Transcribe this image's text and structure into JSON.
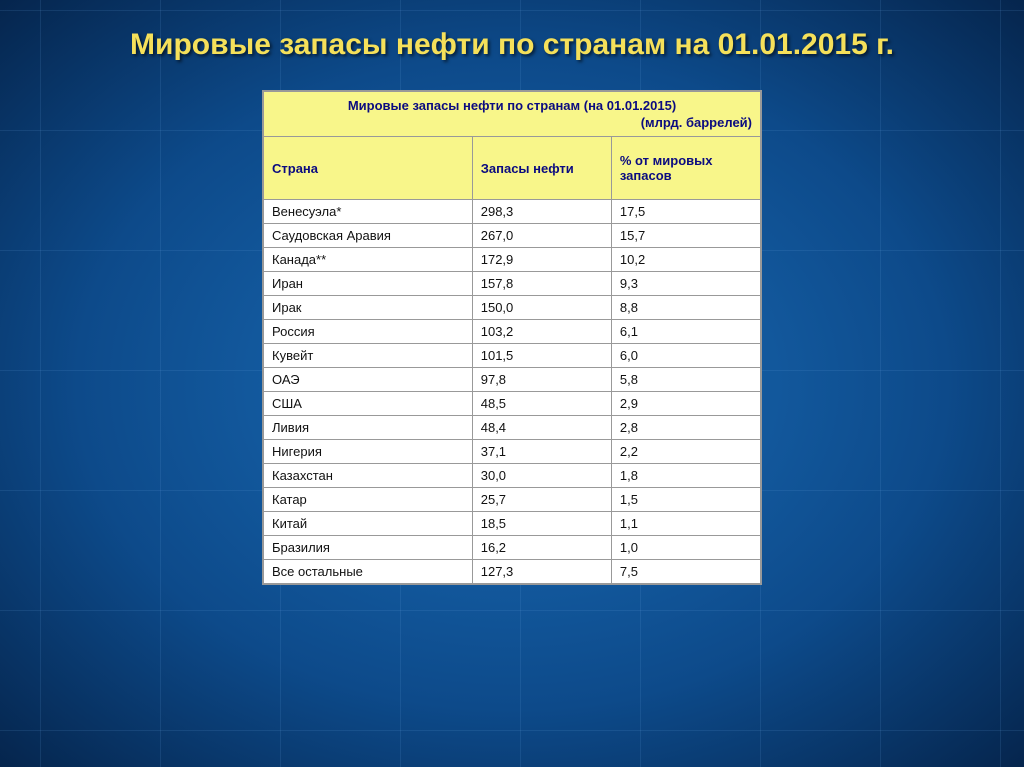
{
  "slide": {
    "title": "Мировые запасы нефти по странам на 01.01.2015 г."
  },
  "table": {
    "caption": "Мировые запасы нефти по странам (на 01.01.2015)",
    "unit": "(млрд. баррелей)",
    "columns": {
      "country": "Страна",
      "reserves": "Запасы нефти",
      "percent": "% от мировых запасов"
    },
    "rows": [
      {
        "country": "Венесуэла*",
        "reserves": "298,3",
        "percent": "17,5"
      },
      {
        "country": "Саудовская Аравия",
        "reserves": "267,0",
        "percent": "15,7"
      },
      {
        "country": "Канада**",
        "reserves": "172,9",
        "percent": "10,2"
      },
      {
        "country": "Иран",
        "reserves": "157,8",
        "percent": "9,3"
      },
      {
        "country": "Ирак",
        "reserves": "150,0",
        "percent": "8,8"
      },
      {
        "country": "Россия",
        "reserves": "103,2",
        "percent": "6,1"
      },
      {
        "country": "Кувейт",
        "reserves": "101,5",
        "percent": "6,0"
      },
      {
        "country": "ОАЭ",
        "reserves": "97,8",
        "percent": "5,8"
      },
      {
        "country": "США",
        "reserves": "48,5",
        "percent": "2,9"
      },
      {
        "country": "Ливия",
        "reserves": "48,4",
        "percent": "2,8"
      },
      {
        "country": "Нигерия",
        "reserves": "37,1",
        "percent": "2,2"
      },
      {
        "country": "Казахстан",
        "reserves": "30,0",
        "percent": "1,8"
      },
      {
        "country": "Катар",
        "reserves": "25,7",
        "percent": "1,5"
      },
      {
        "country": "Китай",
        "reserves": "18,5",
        "percent": "1,1"
      },
      {
        "country": "Бразилия",
        "reserves": "16,2",
        "percent": "1,0"
      },
      {
        "country": "Все остальные",
        "reserves": "127,3",
        "percent": "7,5"
      }
    ]
  },
  "style": {
    "title_color": "#f5e05a",
    "header_bg": "#f8f68a",
    "header_text": "#0b0b80",
    "cell_bg": "#ffffff",
    "border": "#999999"
  }
}
